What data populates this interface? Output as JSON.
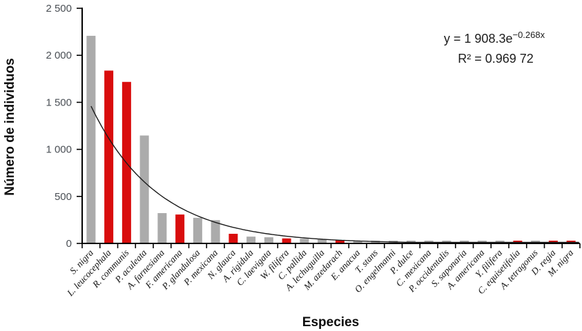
{
  "chart_data": {
    "type": "bar",
    "title": "",
    "xlabel": "Especies",
    "ylabel": "Número de individuos",
    "ylim": [
      0,
      2500
    ],
    "grid": false,
    "legend": "none",
    "y_tick_values": [
      0,
      500,
      1000,
      1500,
      2000,
      2500
    ],
    "y_tick_labels": [
      "0",
      "500",
      "1 000",
      "1 500",
      "2 000",
      "2 500"
    ],
    "categories": [
      "S. nigra",
      "L. leucocephala",
      "R. communis",
      "P. aculeata",
      "A. farnesiana",
      "F. americana",
      "P. glandulosa",
      "P. mexicana",
      "N. glauca",
      "A. rigidula",
      "C. laevigata",
      "W. filifera",
      "C. pallida",
      "A. lechuguilla",
      "M. azedarach",
      "E. anacua",
      "T. stans",
      "O. engelmanni",
      "P. dulce",
      "C. mexicana",
      "P. occidentalis",
      "S. saponaria",
      "A. americana",
      "Y. filifera",
      "C. equisetifolia",
      "A. tetragonus",
      "D. regia",
      "M. nigra"
    ],
    "values": [
      2200,
      1830,
      1710,
      1140,
      315,
      300,
      265,
      240,
      95,
      65,
      58,
      46,
      42,
      34,
      25,
      20,
      16,
      13,
      11,
      10,
      9,
      8,
      7,
      6,
      6,
      5,
      4,
      3
    ],
    "bar_colors": [
      "gray",
      "red",
      "red",
      "gray",
      "gray",
      "red",
      "gray",
      "gray",
      "red",
      "gray",
      "gray",
      "red",
      "gray",
      "gray",
      "red",
      "gray",
      "gray",
      "gray",
      "gray",
      "gray",
      "gray",
      "gray",
      "gray",
      "gray",
      "red",
      "gray",
      "red",
      "red"
    ],
    "colors": {
      "gray": "#ABABAB",
      "red": "#D90D0D",
      "axis": "#000000",
      "trendline": "#1A1A1A"
    },
    "trendline": {
      "type": "exponential",
      "a": 1908.3,
      "b": 0.268
    },
    "annotations": {
      "equation_base": "y = 1 908.3e",
      "equation_exponent": "−0.268x",
      "r_squared": "R² = 0.969 72"
    }
  }
}
